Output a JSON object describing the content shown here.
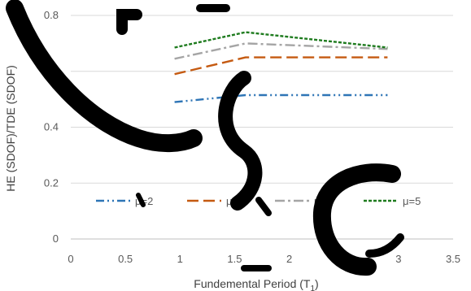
{
  "chart_data": {
    "type": "line",
    "title": "",
    "xlabel": "Fundemental Period (T",
    "xlabel_sub": "1",
    "xlabel_close": ")",
    "ylabel": "HE (SDOF)/TDE (SDOF)",
    "xlim": [
      0,
      3.5
    ],
    "ylim": [
      0,
      0.8
    ],
    "x_ticks": [
      "0",
      "0.5",
      "1",
      "1.5",
      "2",
      "2.5",
      "3",
      "3.5"
    ],
    "y_ticks": [
      "0",
      "0.2",
      "0.4",
      "0.6",
      "0.8"
    ],
    "grid": "horizontal",
    "legend_position": "inside-bottom",
    "x": [
      0.95,
      1.6,
      2.9
    ],
    "series": [
      {
        "name": "μ=2",
        "values": [
          0.49,
          0.515,
          0.515
        ],
        "color": "#2E75B6",
        "dash": "dash-dot-dot"
      },
      {
        "name": "μ=3",
        "values": [
          0.59,
          0.65,
          0.65
        ],
        "color": "#C55A11",
        "dash": "long-dash"
      },
      {
        "name": "μ=4",
        "values": [
          0.645,
          0.7,
          0.68
        ],
        "color": "#A5A5A5",
        "dash": "dash-dot"
      },
      {
        "name": "μ=5",
        "values": [
          0.685,
          0.74,
          0.685
        ],
        "color": "#1E7B1E",
        "dash": "dot"
      }
    ]
  }
}
